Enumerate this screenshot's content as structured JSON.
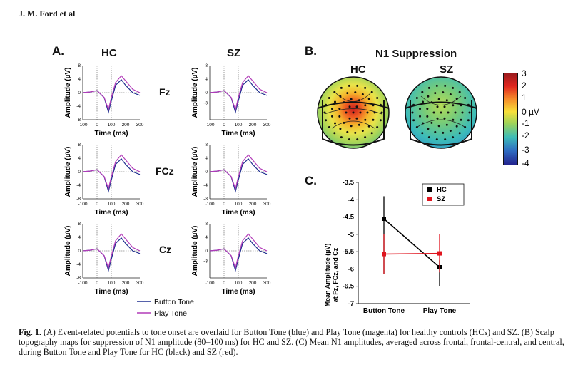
{
  "header": {
    "running_head": "J. M. Ford et al"
  },
  "panel_a": {
    "letter": "A.",
    "columns": [
      "HC",
      "SZ"
    ],
    "rows": [
      "Fz",
      "FCz",
      "Cz"
    ],
    "ylabel": "Amplitude (µV)",
    "xlabel": "Time (ms)",
    "legend": [
      "Button Tone",
      "Play Tone"
    ],
    "colors": {
      "button": "#1f2f8f",
      "play": "#b23bb8"
    }
  },
  "panel_b": {
    "letter": "B.",
    "title": "N1 Suppression",
    "maps": [
      "HC",
      "SZ"
    ],
    "colorbar_ticks": [
      "3",
      "2",
      "1",
      "0 µV",
      "-1",
      "-2",
      "-3",
      "-4"
    ]
  },
  "panel_c": {
    "letter": "C.",
    "ylabel_lines": [
      "Mean Amplitude (µV)",
      "at Fz, FCz, and Cz"
    ],
    "legend": [
      "HC",
      "SZ"
    ]
  },
  "chart_data": [
    {
      "type": "line",
      "id": "erp",
      "panels": [
        "HC Fz",
        "HC FCz",
        "HC Cz",
        "SZ Fz",
        "SZ FCz",
        "SZ Cz"
      ],
      "x": [
        -100,
        -50,
        0,
        50,
        80,
        100,
        130,
        170,
        200,
        250,
        300
      ],
      "x_ticks": [
        -100,
        0,
        100,
        200,
        300
      ],
      "xlim": [
        -100,
        300
      ],
      "y_ticks": [
        -8,
        -4,
        0,
        4,
        8
      ],
      "y_ticks_fz_sz": [
        -3,
        0,
        4,
        8
      ],
      "y_ticks_cz_sz": [
        -3,
        0,
        4,
        8
      ],
      "ylim": [
        -8,
        8
      ],
      "series": [
        {
          "name": "Button Tone",
          "values": [
            0,
            0.2,
            0.6,
            -1.5,
            -5.8,
            -2.5,
            2.2,
            3.8,
            2.2,
            0,
            -0.8
          ]
        },
        {
          "name": "Play Tone",
          "values": [
            0,
            0.2,
            0.6,
            -1.4,
            -5.0,
            -1.5,
            3.0,
            5.0,
            3.5,
            1.0,
            0
          ]
        }
      ],
      "xlabel": "Time (ms)",
      "ylabel": "Amplitude (µV)"
    },
    {
      "type": "line",
      "id": "mean-n1",
      "categories": [
        "Button Tone",
        "Play Tone"
      ],
      "ylim": [
        -7,
        -3.5
      ],
      "y_ticks": [
        -3.5,
        -4,
        -4.5,
        -5,
        -5.5,
        -6,
        -6.5,
        -7
      ],
      "series": [
        {
          "name": "HC",
          "color": "#000000",
          "values": [
            -4.55,
            -5.95
          ],
          "err_low": [
            -6.15,
            -6.5
          ],
          "err_high": [
            -3.9,
            -5.75
          ]
        },
        {
          "name": "SZ",
          "color": "#e0141e",
          "values": [
            -5.57,
            -5.55
          ],
          "err_low": [
            -6.15,
            -6.1
          ],
          "err_high": [
            -5.0,
            -5.0
          ]
        }
      ]
    }
  ],
  "caption": {
    "label": "Fig. 1.",
    "text": " (A) Event-related potentials to tone onset are overlaid for Button Tone (blue) and Play Tone (magenta) for healthy controls (HCs) and SZ. (B) Scalp topography maps for suppression of N1 amplitude (80–100 ms) for HC and SZ. (C) Mean N1 amplitudes, averaged across frontal, frontal-central, and central, during Button Tone and Play Tone for HC (black) and SZ (red)."
  }
}
